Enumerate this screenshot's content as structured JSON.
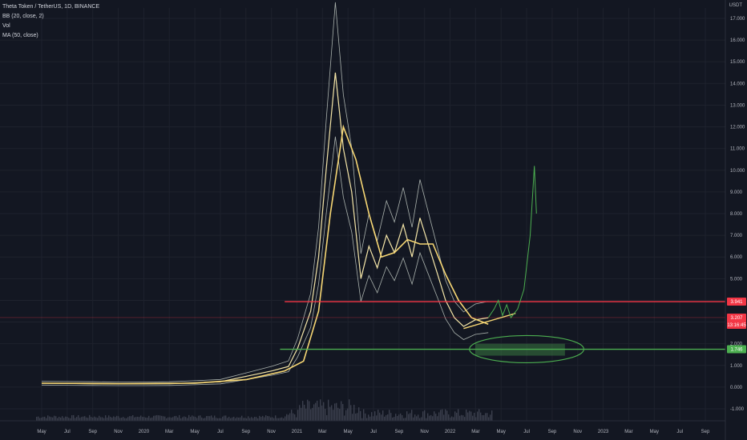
{
  "legend": {
    "symbol": "Theta Token / TetherUS, 1D, BINANCE",
    "bb": "BB (20, close, 2)",
    "vol": "Vol",
    "ma": "MA (50, close)"
  },
  "currency": "USDT",
  "colors": {
    "background": "#131722",
    "price": "#f5e6a8",
    "bands": "#cfd8cf",
    "ma": "#f7d774",
    "resistance": "#f23645",
    "support": "#4caf50",
    "projection": "#4caf50",
    "volume": "#3b3f4d"
  },
  "chart_data": {
    "type": "line",
    "y_scale": "log",
    "ylim": [
      -1,
      17
    ],
    "y_ticks": [
      "-1.000",
      "0.000",
      "1.000",
      "2.000",
      "3.000",
      "4.000",
      "5.000",
      "6.000",
      "7.000",
      "8.000",
      "9.000",
      "10.000",
      "11.000",
      "12.000",
      "13.000",
      "14.000",
      "15.000",
      "16.000",
      "17.000"
    ],
    "x_ticks": [
      "May",
      "Jul",
      "Sep",
      "Nov",
      "2020",
      "Mar",
      "May",
      "Jul",
      "Sep",
      "Nov",
      "2021",
      "Mar",
      "May",
      "Jul",
      "Sep",
      "Nov",
      "2022",
      "Mar",
      "May",
      "Jul",
      "Sep",
      "Nov",
      "2023",
      "Mar",
      "May",
      "Jul",
      "Sep"
    ],
    "price_series": {
      "name": "Theta Token / TetherUS",
      "points": [
        [
          "2019-05-01",
          0.18
        ],
        [
          "2019-07-01",
          0.17
        ],
        [
          "2019-09-01",
          0.16
        ],
        [
          "2019-11-01",
          0.15
        ],
        [
          "2020-01-01",
          0.15
        ],
        [
          "2020-03-01",
          0.16
        ],
        [
          "2020-05-01",
          0.2
        ],
        [
          "2020-07-01",
          0.25
        ],
        [
          "2020-09-01",
          0.5
        ],
        [
          "2020-11-01",
          0.75
        ],
        [
          "2020-12-10",
          0.95
        ],
        [
          "2021-01-01",
          1.8
        ],
        [
          "2021-02-01",
          3.5
        ],
        [
          "2021-02-20",
          6.0
        ],
        [
          "2021-03-10",
          10.0
        ],
        [
          "2021-04-01",
          14.5
        ],
        [
          "2021-04-20",
          11.0
        ],
        [
          "2021-05-10",
          9.0
        ],
        [
          "2021-06-01",
          5.0
        ],
        [
          "2021-06-20",
          6.5
        ],
        [
          "2021-07-10",
          5.5
        ],
        [
          "2021-08-01",
          7.0
        ],
        [
          "2021-08-20",
          6.2
        ],
        [
          "2021-09-10",
          7.5
        ],
        [
          "2021-10-01",
          6.0
        ],
        [
          "2021-10-20",
          7.8
        ],
        [
          "2021-11-10",
          6.5
        ],
        [
          "2021-12-01",
          5.2
        ],
        [
          "2021-12-20",
          4.0
        ],
        [
          "2022-01-10",
          3.2
        ],
        [
          "2022-02-01",
          2.8
        ],
        [
          "2022-03-01",
          3.1
        ],
        [
          "2022-04-01",
          3.2
        ]
      ]
    },
    "ma_series": {
      "name": "MA (50, close)",
      "points": [
        [
          "2019-05-01",
          0.18
        ],
        [
          "2019-11-01",
          0.16
        ],
        [
          "2020-05-01",
          0.18
        ],
        [
          "2020-09-01",
          0.35
        ],
        [
          "2020-12-01",
          0.75
        ],
        [
          "2021-01-15",
          1.2
        ],
        [
          "2021-02-20",
          3.5
        ],
        [
          "2021-03-20",
          8.0
        ],
        [
          "2021-04-20",
          12.0
        ],
        [
          "2021-05-20",
          10.5
        ],
        [
          "2021-06-20",
          8.0
        ],
        [
          "2021-07-20",
          6.0
        ],
        [
          "2021-08-20",
          6.2
        ],
        [
          "2021-09-20",
          6.8
        ],
        [
          "2021-10-20",
          6.6
        ],
        [
          "2021-11-20",
          6.6
        ],
        [
          "2021-12-20",
          5.2
        ],
        [
          "2022-01-20",
          4.0
        ],
        [
          "2022-02-20",
          3.2
        ],
        [
          "2022-04-01",
          2.9
        ]
      ]
    },
    "horizontal_levels": [
      {
        "price": 3.941,
        "color": "#f23645"
      },
      {
        "price": 1.746,
        "color": "#4caf50"
      }
    ],
    "price_tags": [
      {
        "label": "3.941",
        "price": 3.941,
        "color": "#f23645"
      },
      {
        "label": "3.207",
        "price": 3.207,
        "color": "#f23645"
      },
      {
        "label": "13:16:45",
        "price": 3.0,
        "color": "#f23645"
      },
      {
        "label": "1.746",
        "price": 1.746,
        "color": "#4caf50"
      }
    ],
    "projection": {
      "name": "projection",
      "points": [
        [
          "2022-04-01",
          3.2
        ],
        [
          "2022-04-15",
          3.6
        ],
        [
          "2022-04-25",
          4.0
        ],
        [
          "2022-05-05",
          3.3
        ],
        [
          "2022-05-15",
          3.8
        ],
        [
          "2022-05-25",
          3.2
        ],
        [
          "2022-06-10",
          3.6
        ],
        [
          "2022-06-25",
          4.5
        ],
        [
          "2022-07-10",
          7.0
        ],
        [
          "2022-07-20",
          10.2
        ],
        [
          "2022-07-25",
          8.0
        ]
      ]
    },
    "trendline": {
      "start": [
        "2022-02-01",
        2.7
      ],
      "end": [
        "2022-06-05",
        3.4
      ]
    }
  }
}
